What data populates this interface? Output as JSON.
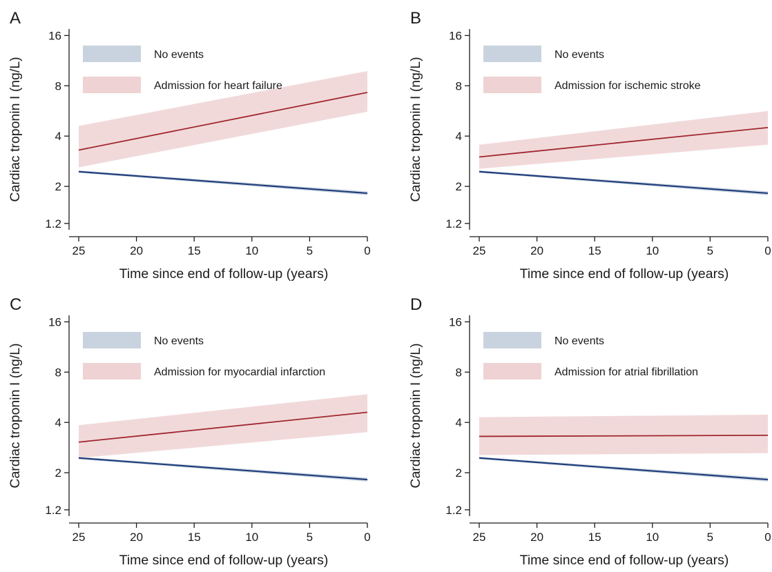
{
  "chart_data": [
    {
      "type": "line",
      "panel_label": "A",
      "xlabel": "Time since end of follow-up (years)",
      "ylabel": "Cardiac troponin I (ng/L)",
      "y_scale": "log",
      "xlim": [
        25,
        0
      ],
      "ylim": [
        1.1,
        17.5
      ],
      "x_ticks": [
        25,
        20,
        15,
        10,
        5,
        0
      ],
      "y_ticks": [
        1.2,
        2,
        4,
        8,
        16
      ],
      "grid": false,
      "legend_position": "top-left",
      "colors": {
        "no_events_line": "#1f3d7a",
        "no_events_band": "#c9d3e0",
        "event_line": "#a0262d",
        "event_band": "#efd2d3"
      },
      "series": [
        {
          "name": "No events",
          "x": [
            25,
            0
          ],
          "y": [
            2.45,
            1.82
          ],
          "ci_lower": [
            2.41,
            1.77
          ],
          "ci_upper": [
            2.49,
            1.87
          ]
        },
        {
          "name": "Admission for heart failure",
          "x": [
            25,
            0
          ],
          "y": [
            3.3,
            7.3
          ],
          "ci_lower": [
            2.6,
            5.6
          ],
          "ci_upper": [
            4.6,
            9.8
          ]
        }
      ]
    },
    {
      "type": "line",
      "panel_label": "B",
      "xlabel": "Time since end of follow-up (years)",
      "ylabel": "Cardiac troponin I (ng/L)",
      "y_scale": "log",
      "xlim": [
        25,
        0
      ],
      "ylim": [
        1.1,
        17.5
      ],
      "x_ticks": [
        25,
        20,
        15,
        10,
        5,
        0
      ],
      "y_ticks": [
        1.2,
        2,
        4,
        8,
        16
      ],
      "grid": false,
      "legend_position": "top-left",
      "colors": {
        "no_events_line": "#1f3d7a",
        "no_events_band": "#c9d3e0",
        "event_line": "#a0262d",
        "event_band": "#efd2d3"
      },
      "series": [
        {
          "name": "No events",
          "x": [
            25,
            0
          ],
          "y": [
            2.45,
            1.82
          ],
          "ci_lower": [
            2.41,
            1.77
          ],
          "ci_upper": [
            2.49,
            1.87
          ]
        },
        {
          "name": "Admission for ischemic stroke",
          "x": [
            25,
            0
          ],
          "y": [
            3.0,
            4.5
          ],
          "ci_lower": [
            2.55,
            3.55
          ],
          "ci_upper": [
            3.55,
            5.65
          ]
        }
      ]
    },
    {
      "type": "line",
      "panel_label": "C",
      "xlabel": "Time since end of follow-up (years)",
      "ylabel": "Cardiac troponin I (ng/L)",
      "y_scale": "log",
      "xlim": [
        25,
        0
      ],
      "ylim": [
        1.1,
        17.5
      ],
      "x_ticks": [
        25,
        20,
        15,
        10,
        5,
        0
      ],
      "y_ticks": [
        1.2,
        2,
        4,
        8,
        16
      ],
      "grid": false,
      "legend_position": "top-left",
      "colors": {
        "no_events_line": "#1f3d7a",
        "no_events_band": "#c9d3e0",
        "event_line": "#a0262d",
        "event_band": "#efd2d3"
      },
      "series": [
        {
          "name": "No events",
          "x": [
            25,
            0
          ],
          "y": [
            2.45,
            1.82
          ],
          "ci_lower": [
            2.41,
            1.77
          ],
          "ci_upper": [
            2.49,
            1.87
          ]
        },
        {
          "name": "Admission for myocardial infarction",
          "x": [
            25,
            0
          ],
          "y": [
            3.05,
            4.6
          ],
          "ci_lower": [
            2.45,
            3.5
          ],
          "ci_upper": [
            3.85,
            5.9
          ]
        }
      ]
    },
    {
      "type": "line",
      "panel_label": "D",
      "xlabel": "Time since end of follow-up (years)",
      "ylabel": "Cardiac troponin I (ng/L)",
      "y_scale": "log",
      "xlim": [
        25,
        0
      ],
      "ylim": [
        1.1,
        17.5
      ],
      "x_ticks": [
        25,
        20,
        15,
        10,
        5,
        0
      ],
      "y_ticks": [
        1.2,
        2,
        4,
        8,
        16
      ],
      "grid": false,
      "legend_position": "top-left",
      "colors": {
        "no_events_line": "#1f3d7a",
        "no_events_band": "#c9d3e0",
        "event_line": "#a0262d",
        "event_band": "#efd2d3"
      },
      "series": [
        {
          "name": "No events",
          "x": [
            25,
            0
          ],
          "y": [
            2.45,
            1.82
          ],
          "ci_lower": [
            2.41,
            1.77
          ],
          "ci_upper": [
            2.49,
            1.87
          ]
        },
        {
          "name": "Admission for atrial fibrillation",
          "x": [
            25,
            0
          ],
          "y": [
            3.3,
            3.35
          ],
          "ci_lower": [
            2.55,
            2.62
          ],
          "ci_upper": [
            4.3,
            4.45
          ]
        }
      ]
    }
  ]
}
